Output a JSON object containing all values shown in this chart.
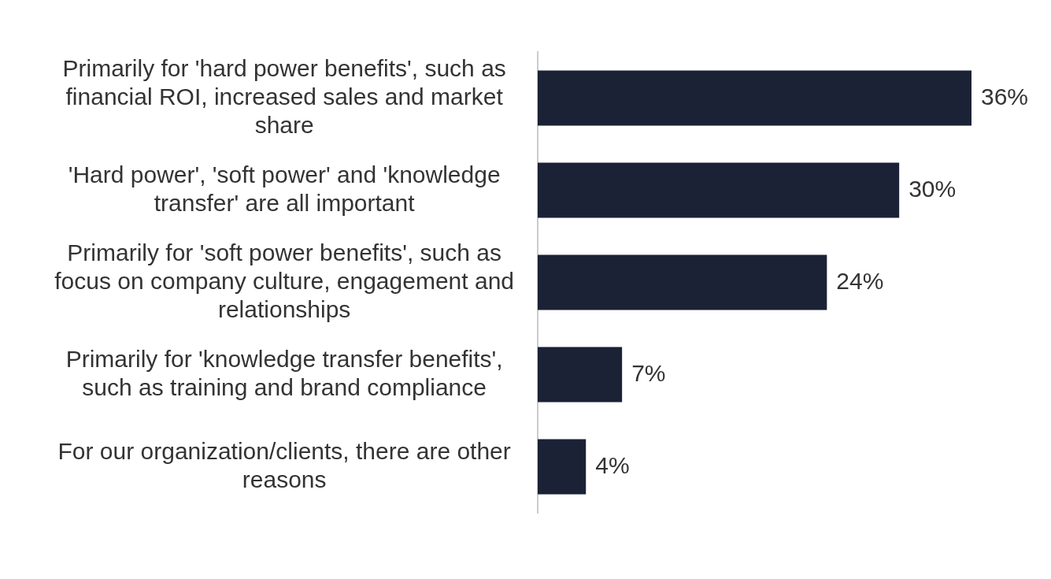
{
  "chart_data": {
    "type": "bar",
    "orientation": "horizontal",
    "categories": [
      "Primarily for 'hard power benefits', such as financial ROI, increased sales and market share",
      "'Hard power', 'soft power' and 'knowledge transfer' are all important",
      "Primarily for 'soft power benefits', such as focus on company culture, engagement and relationships",
      "Primarily for 'knowledge transfer benefits', such as training and brand compliance",
      "For our organization/clients, there are other reasons"
    ],
    "values": [
      36,
      30,
      24,
      7,
      4
    ],
    "value_labels": [
      "36%",
      "30%",
      "24%",
      "7%",
      "4%"
    ],
    "color": "#1b2236"
  }
}
